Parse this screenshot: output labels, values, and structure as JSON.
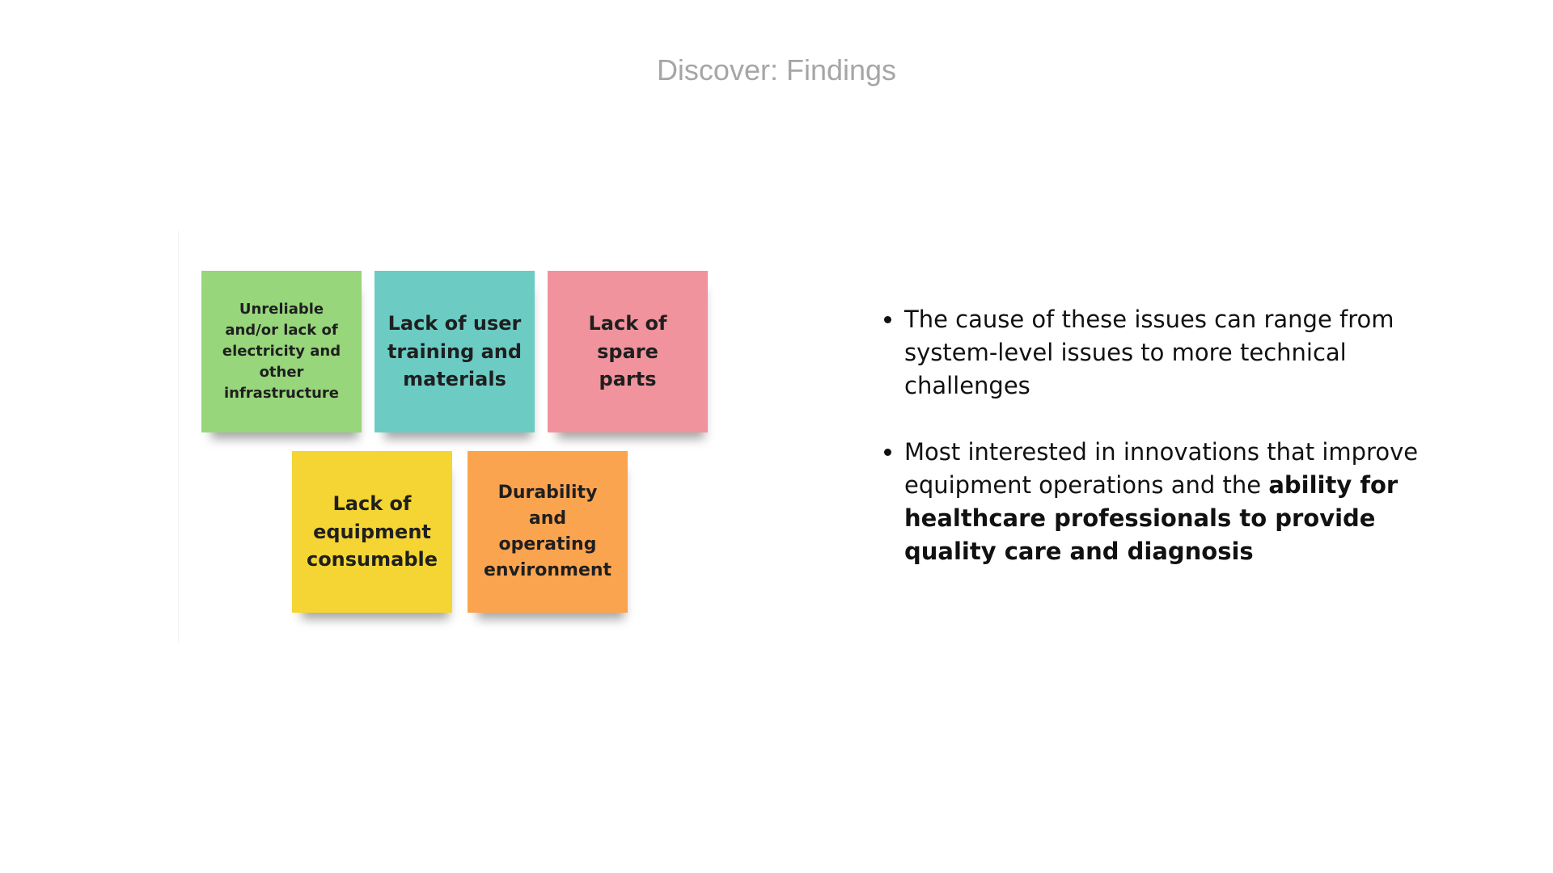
{
  "slide": {
    "title": "Discover: Findings"
  },
  "notes": [
    {
      "text": "Unreliable and/or lack of electricity and other infrastructure",
      "color": "#97d67b"
    },
    {
      "text": "Lack of user training and materials",
      "color": "#6cccc4"
    },
    {
      "text": "Lack of spare parts",
      "color": "#f0939d"
    },
    {
      "text": "Lack of equipment consumable",
      "color": "#f4d534"
    },
    {
      "text": "Durability and operating environment",
      "color": "#fba450"
    }
  ],
  "bullets": [
    {
      "text": "The cause of these issues can range from system-level issues to more technical challenges"
    },
    {
      "text_plain": "Most interested in innovations that improve equipment operations and the ",
      "text_bold": "ability for healthcare professionals to provide quality care and diagnosis"
    }
  ]
}
